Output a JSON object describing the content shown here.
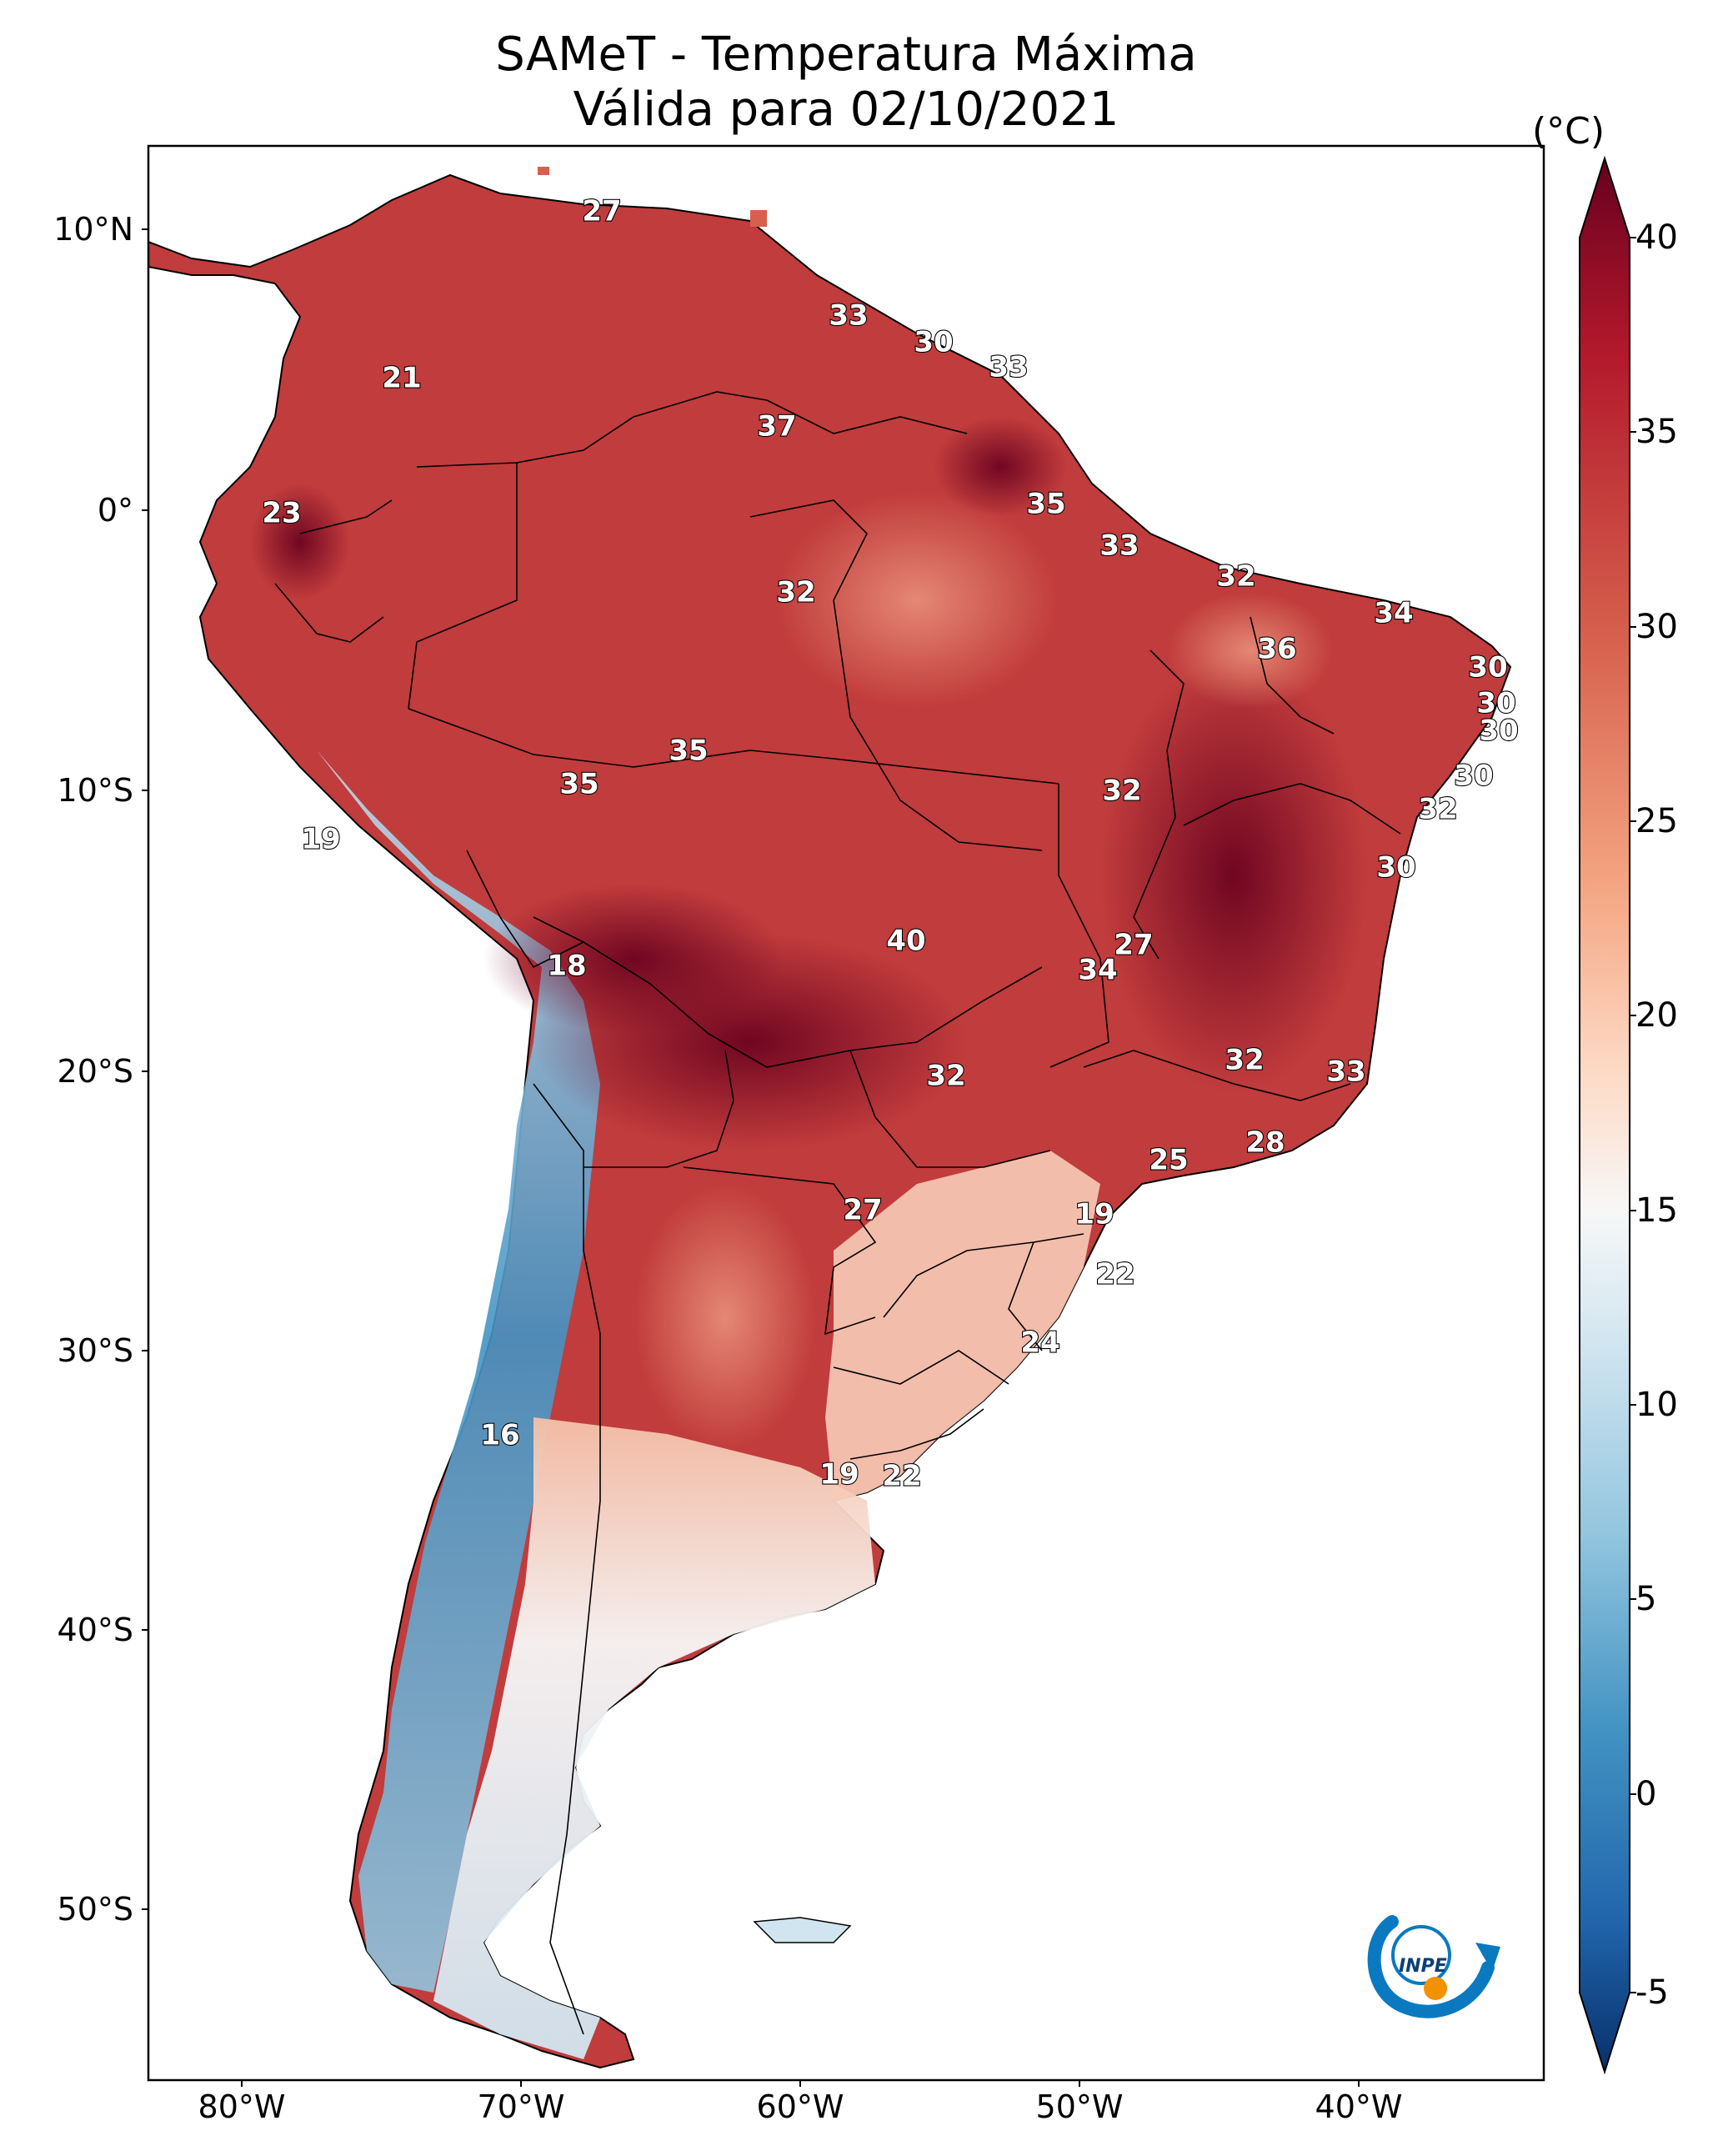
{
  "title": "SAMeT - Temperatura Máxima",
  "subtitle": "Válida para 02/10/2021",
  "colorbar": {
    "unit": "(°C)",
    "ticks": [
      "40",
      "35",
      "30",
      "25",
      "20",
      "15",
      "10",
      "5",
      "0",
      "-5"
    ],
    "range": [
      -5,
      40
    ],
    "colors": [
      "#08306b",
      "#2166ac",
      "#4393c3",
      "#92c5de",
      "#d1e5f0",
      "#f7f7f7",
      "#fddbc7",
      "#f4a582",
      "#d6604d",
      "#b2182b",
      "#67001f"
    ]
  },
  "axes": {
    "lat_labels": [
      "10°N",
      "0°",
      "10°S",
      "20°S",
      "30°S",
      "40°S",
      "50°S"
    ],
    "lon_labels": [
      "80°W",
      "70°W",
      "60°W",
      "50°W",
      "40°W"
    ]
  },
  "map_values": [
    {
      "label": "27"
    },
    {
      "label": "33"
    },
    {
      "label": "30"
    },
    {
      "label": "33"
    },
    {
      "label": "21"
    },
    {
      "label": "37"
    },
    {
      "label": "23"
    },
    {
      "label": "35"
    },
    {
      "label": "33"
    },
    {
      "label": "32"
    },
    {
      "label": "32"
    },
    {
      "label": "34"
    },
    {
      "label": "36"
    },
    {
      "label": "30"
    },
    {
      "label": "30"
    },
    {
      "label": "30"
    },
    {
      "label": "35"
    },
    {
      "label": "35"
    },
    {
      "label": "30"
    },
    {
      "label": "32"
    },
    {
      "label": "32"
    },
    {
      "label": "19"
    },
    {
      "label": "30"
    },
    {
      "label": "40"
    },
    {
      "label": "27"
    },
    {
      "label": "34"
    },
    {
      "label": "18"
    },
    {
      "label": "32"
    },
    {
      "label": "32"
    },
    {
      "label": "33"
    },
    {
      "label": "28"
    },
    {
      "label": "25"
    },
    {
      "label": "27"
    },
    {
      "label": "19"
    },
    {
      "label": "22"
    },
    {
      "label": "24"
    },
    {
      "label": "16"
    },
    {
      "label": "19"
    },
    {
      "label": "22"
    }
  ],
  "logo": {
    "text": "INPE"
  }
}
